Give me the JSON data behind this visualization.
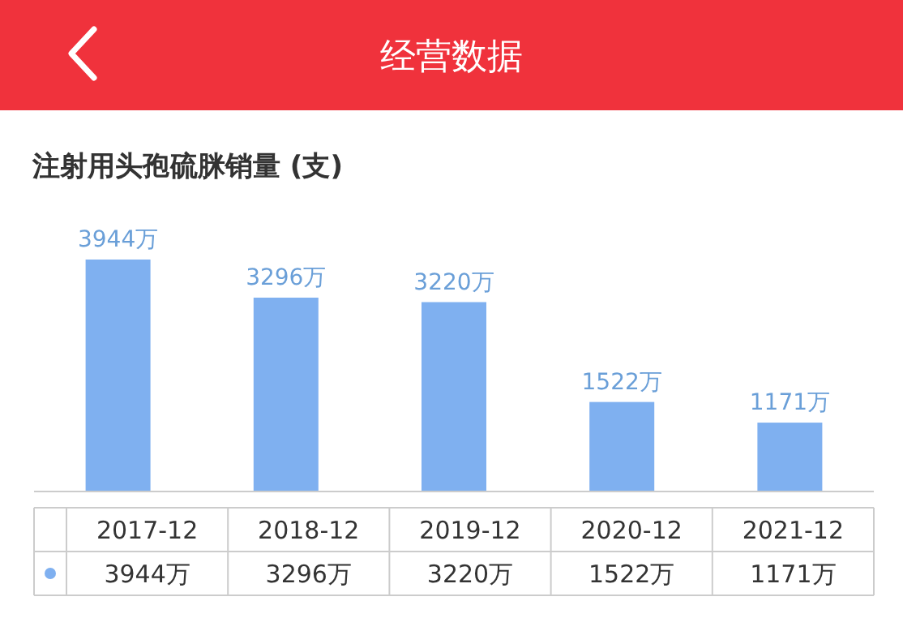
{
  "chart_data": {
    "type": "bar",
    "title": "经营数据",
    "subtitle": "注射用头孢硫脒销量 (支)",
    "categories": [
      "2017-12",
      "2018-12",
      "2019-12",
      "2020-12",
      "2021-12"
    ],
    "values": [
      3944,
      3296,
      3220,
      1522,
      1171
    ],
    "color": "#7fb0f0",
    "value_labels": [
      "3944万",
      "3296万",
      "3220万",
      "1522万",
      "1171万"
    ]
  }
}
